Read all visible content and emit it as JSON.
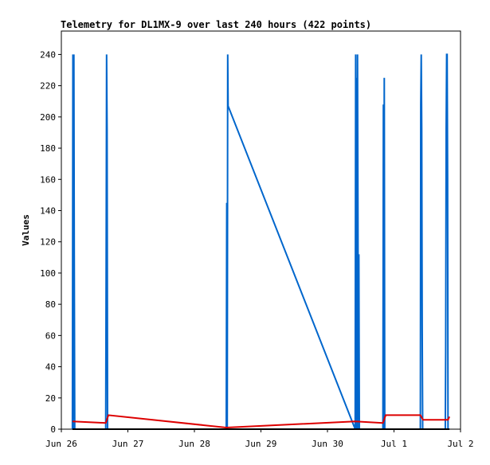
{
  "chart_data": {
    "type": "line",
    "title": "Telemetry for DL1MX-9 over last 240 hours (422 points)",
    "xlabel": "",
    "ylabel": "Values",
    "x_axis_type": "date",
    "xlim": [
      "2024-06-26",
      "2024-07-02"
    ],
    "ylim": [
      0,
      255
    ],
    "x_ticks": [
      {
        "x": "2024-06-26",
        "label": "Jun 26"
      },
      {
        "x": "2024-06-27",
        "label": "Jun 27"
      },
      {
        "x": "2024-06-28",
        "label": "Jun 28"
      },
      {
        "x": "2024-06-29",
        "label": "Jun 29"
      },
      {
        "x": "2024-06-30",
        "label": "Jun 30"
      },
      {
        "x": "2024-07-01",
        "label": "Jul 1"
      },
      {
        "x": "2024-07-02",
        "label": "Jul 2"
      }
    ],
    "y_ticks": [
      0,
      20,
      40,
      60,
      80,
      100,
      120,
      140,
      160,
      180,
      200,
      220,
      240
    ],
    "grid": false,
    "legend": "none",
    "series": [
      {
        "color": "#0066cc",
        "points": [
          [
            "2024-06-26T04:00",
            0
          ],
          [
            "2024-06-26T04:10",
            240
          ],
          [
            "2024-06-26T04:20",
            0
          ],
          [
            "2024-06-26T04:30",
            240
          ],
          [
            "2024-06-26T04:40",
            112
          ],
          [
            "2024-06-26T04:50",
            0
          ],
          [
            "2024-06-26T16:00",
            0
          ],
          [
            "2024-06-26T16:10",
            97
          ],
          [
            "2024-06-26T16:20",
            240
          ],
          [
            "2024-06-26T16:30",
            192
          ],
          [
            "2024-06-26T16:40",
            0
          ],
          [
            "2024-06-28T11:30",
            0
          ],
          [
            "2024-06-28T11:40",
            145
          ],
          [
            "2024-06-28T11:50",
            0
          ],
          [
            "2024-06-28T12:00",
            240
          ],
          [
            "2024-06-28T12:10",
            207
          ],
          [
            "2024-06-30T10:00",
            0
          ],
          [
            "2024-06-30T10:10",
            240
          ],
          [
            "2024-06-30T10:20",
            0
          ],
          [
            "2024-06-30T10:30",
            225
          ],
          [
            "2024-06-30T10:40",
            0
          ],
          [
            "2024-06-30T10:50",
            240
          ],
          [
            "2024-06-30T11:00",
            134
          ],
          [
            "2024-06-30T11:10",
            0
          ],
          [
            "2024-06-30T11:20",
            112
          ],
          [
            "2024-06-30T11:30",
            0
          ],
          [
            "2024-06-30T20:00",
            0
          ],
          [
            "2024-06-30T20:10",
            208
          ],
          [
            "2024-06-30T20:20",
            0
          ],
          [
            "2024-06-30T20:30",
            225
          ],
          [
            "2024-06-30T20:40",
            0
          ],
          [
            "2024-07-01T09:30",
            0
          ],
          [
            "2024-07-01T09:40",
            208
          ],
          [
            "2024-07-01T09:50",
            240
          ],
          [
            "2024-07-01T10:00",
            192
          ],
          [
            "2024-07-01T10:10",
            65
          ],
          [
            "2024-07-01T10:20",
            0
          ],
          [
            "2024-07-01T18:30",
            0
          ],
          [
            "2024-07-01T18:40",
            49
          ],
          [
            "2024-07-01T18:50",
            192
          ],
          [
            "2024-07-01T19:00",
            240
          ],
          [
            "2024-07-01T19:10",
            240
          ],
          [
            "2024-07-01T19:20",
            160
          ],
          [
            "2024-07-01T19:30",
            0
          ]
        ]
      },
      {
        "color": "#dd0000",
        "points": [
          [
            "2024-06-26T04:00",
            5
          ],
          [
            "2024-06-26T16:00",
            4
          ],
          [
            "2024-06-26T17:00",
            9
          ],
          [
            "2024-06-28T11:30",
            1
          ],
          [
            "2024-06-30T10:00",
            5
          ],
          [
            "2024-06-30T20:00",
            4
          ],
          [
            "2024-06-30T21:00",
            9
          ],
          [
            "2024-07-01T09:30",
            9
          ],
          [
            "2024-07-01T10:30",
            6
          ],
          [
            "2024-07-01T19:30",
            6
          ],
          [
            "2024-07-01T20:00",
            8
          ]
        ]
      },
      {
        "color": "#000000",
        "points": [
          [
            "2024-06-26T04:00",
            0
          ],
          [
            "2024-07-01T20:00",
            0
          ]
        ]
      }
    ]
  }
}
